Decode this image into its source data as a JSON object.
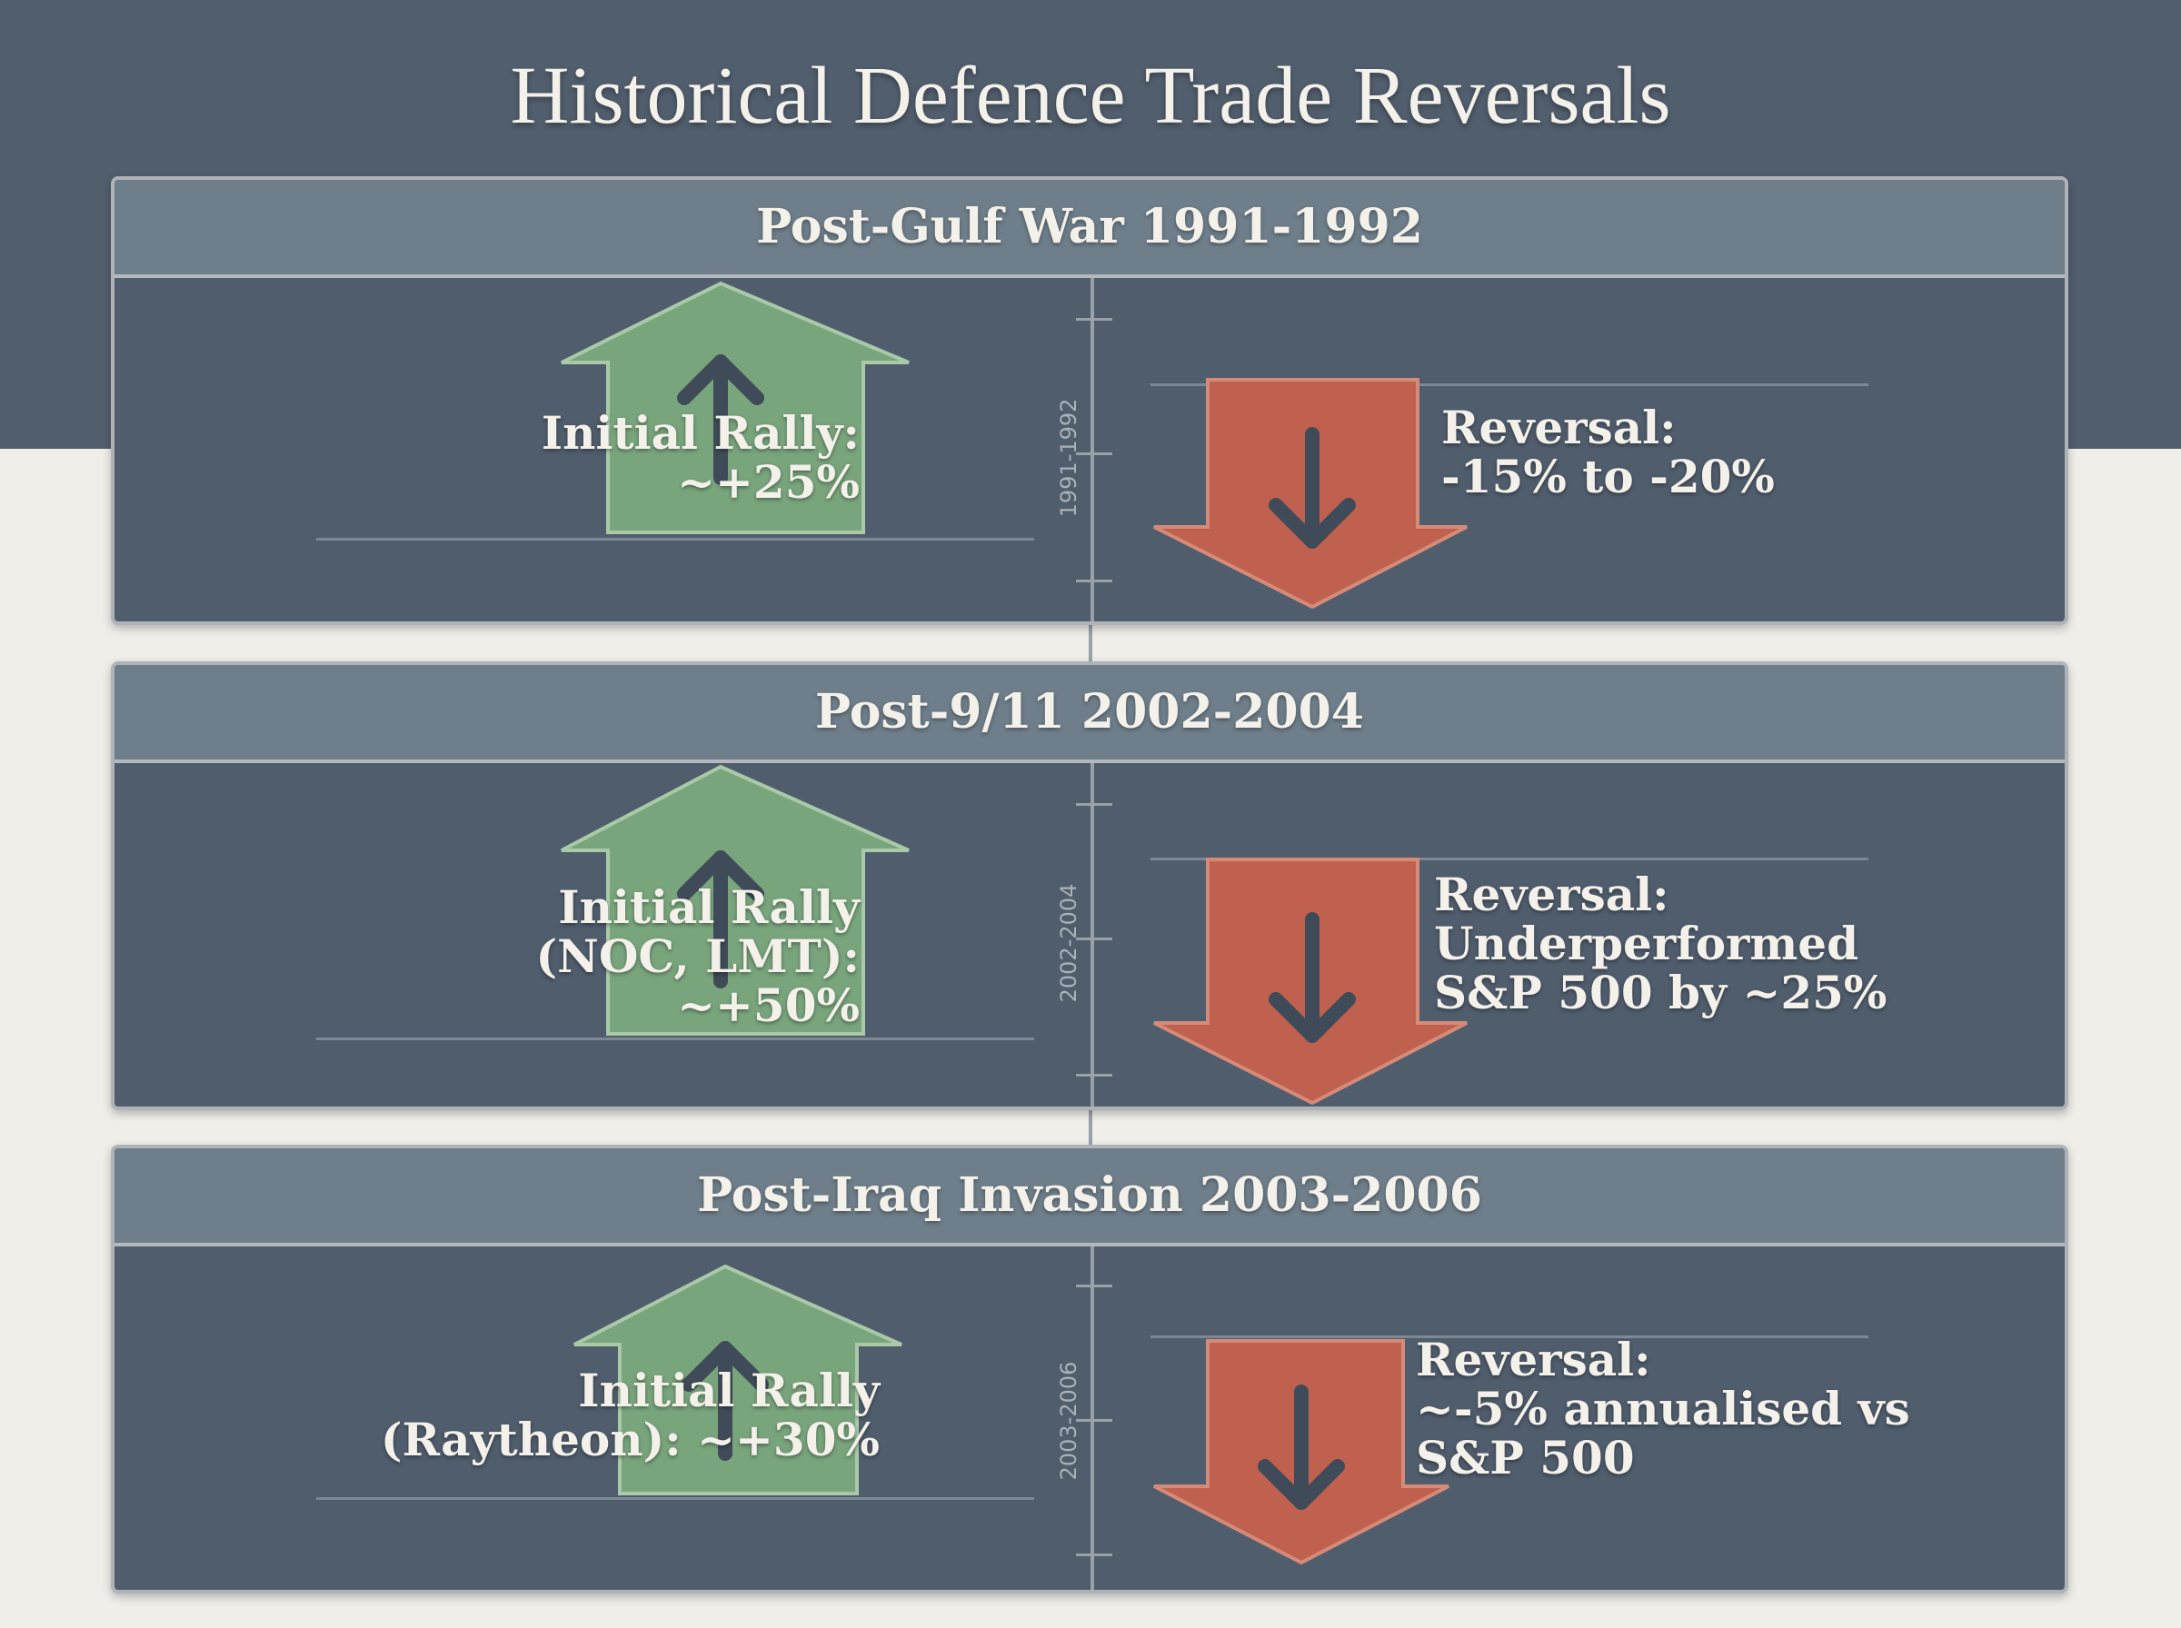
{
  "title": "Historical Defence Trade Reversals",
  "colors": {
    "background": "#f0eee9",
    "band": "#515e6d",
    "panel": "#505d6d",
    "header": "#6e7e8a",
    "rally_arrow": "#79a57d",
    "reversal_arrow": "#c0614f"
  },
  "icons": {
    "rally": "arrow-up-icon",
    "reversal": "arrow-down-icon"
  },
  "episodes": [
    {
      "heading": "Post-Gulf War 1991-1992",
      "period": "1991-1992",
      "rally_lines": [
        "Initial Rally:",
        "~+25%"
      ],
      "reversal_lines": [
        "Reversal:",
        "-15% to -20%"
      ]
    },
    {
      "heading": "Post-9/11 2002-2004",
      "period": "2002-2004",
      "rally_lines": [
        "Initial Rally",
        "(NOC, LMT):",
        "~+50%"
      ],
      "reversal_lines": [
        "Reversal:",
        "Underperformed",
        "S&P 500 by ~25%"
      ]
    },
    {
      "heading": "Post-Iraq Invasion 2003-2006",
      "period": "2003-2006",
      "rally_lines": [
        "Initial Rally",
        "(Raytheon): ~+30%"
      ],
      "reversal_lines": [
        "Reversal:",
        "~-5% annualised vs",
        "S&P 500"
      ]
    }
  ]
}
